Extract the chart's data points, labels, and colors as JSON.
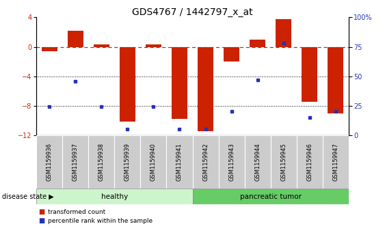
{
  "title": "GDS4767 / 1442797_x_at",
  "samples": [
    "GSM1159936",
    "GSM1159937",
    "GSM1159938",
    "GSM1159939",
    "GSM1159940",
    "GSM1159941",
    "GSM1159942",
    "GSM1159943",
    "GSM1159944",
    "GSM1159945",
    "GSM1159946",
    "GSM1159947"
  ],
  "transformed_count": [
    -0.6,
    2.2,
    0.3,
    -10.2,
    0.3,
    -9.8,
    -11.5,
    -2.0,
    1.0,
    3.8,
    -7.5,
    -9.0
  ],
  "percentile_rank": [
    24,
    46,
    24,
    5,
    24,
    5,
    5,
    20,
    47,
    78,
    15,
    20
  ],
  "ylim_left": [
    -12,
    4
  ],
  "ylim_right": [
    0,
    100
  ],
  "yticks_left": [
    -12,
    -8,
    -4,
    0,
    4
  ],
  "yticks_right": [
    0,
    25,
    50,
    75,
    100
  ],
  "bar_color": "#cc2200",
  "dot_color": "#2233bb",
  "hline_color": "#cc2200",
  "grid_color": "#000000",
  "title_fontsize": 10,
  "tick_fontsize": 7,
  "label_area_color": "#cccccc",
  "healthy_color": "#ccf5cc",
  "tumor_color": "#66cc66"
}
